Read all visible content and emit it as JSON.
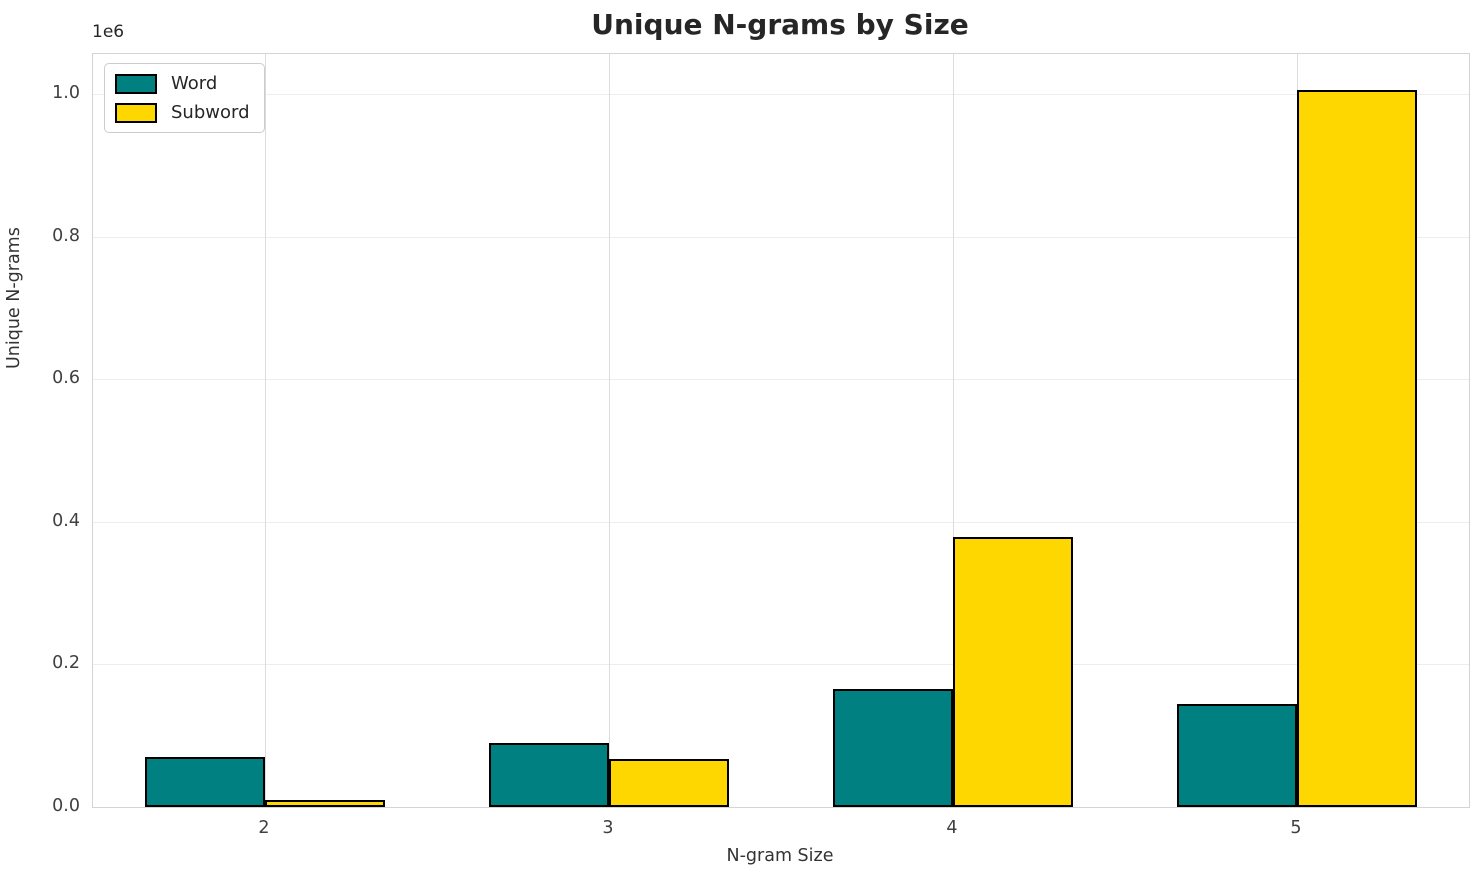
{
  "title": "Unique N-grams by Size",
  "chart_data": {
    "type": "bar",
    "title": "Unique N-grams by Size",
    "xlabel": "N-gram Size",
    "ylabel": "Unique N-grams",
    "y_offset_label": "1e6",
    "categories": [
      "2",
      "3",
      "4",
      "5"
    ],
    "series": [
      {
        "name": "Word",
        "color": "#008080",
        "values": [
          70000,
          90000,
          166000,
          145000
        ]
      },
      {
        "name": "Subword",
        "color": "#FFD700",
        "values": [
          10000,
          68000,
          378000,
          1005000
        ]
      }
    ],
    "bar_edge_color": "#000000",
    "ylim": [
      0,
      1056000
    ],
    "yticks": [
      0,
      200000,
      400000,
      600000,
      800000,
      1000000
    ],
    "ytick_labels": [
      "0.0",
      "0.2",
      "0.4",
      "0.6",
      "0.8",
      "1.0"
    ],
    "grid": true,
    "legend_position": "upper left"
  },
  "colors": {
    "background": "#ffffff",
    "spine": "#d4d4d4",
    "grid_h": "#ededed",
    "grid_v": "#dcdcdc",
    "text": "#262626",
    "tick_text": "#404040"
  }
}
